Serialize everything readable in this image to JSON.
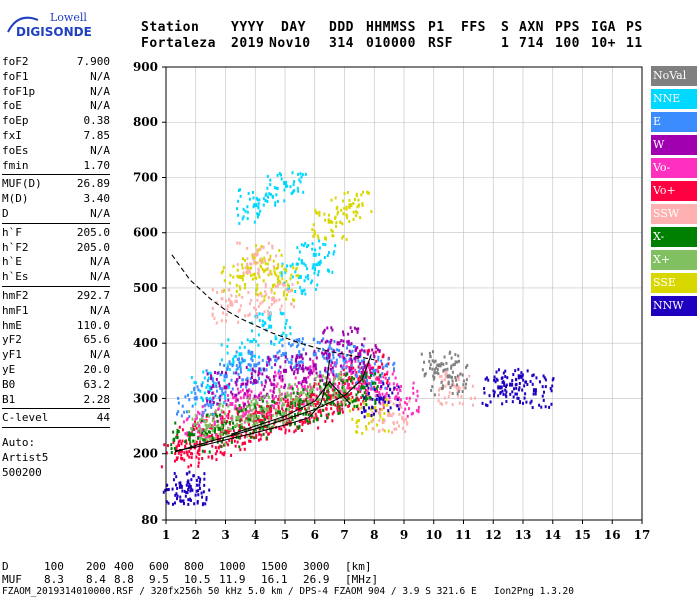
{
  "logo": {
    "line1": "Lowell",
    "line2": "DIGISONDE"
  },
  "header": {
    "row1": [
      "Station",
      "YYYY",
      "DAY",
      "DDD",
      "HHMMSS",
      "P1",
      "FFS",
      "S",
      "AXN",
      "PPS",
      "IGA",
      "PS"
    ],
    "row2": [
      "Fortaleza",
      "2019",
      "Nov10",
      "314",
      "010000",
      "RSF",
      "",
      "1",
      "714",
      "100",
      "10+",
      "11"
    ]
  },
  "params": [
    {
      "name": "foF2",
      "value": "7.900"
    },
    {
      "name": "foF1",
      "value": "N/A"
    },
    {
      "name": "foF1p",
      "value": "N/A"
    },
    {
      "name": "foE",
      "value": "N/A"
    },
    {
      "name": "foEp",
      "value": "0.38"
    },
    {
      "name": "fxI",
      "value": "7.85"
    },
    {
      "name": "foEs",
      "value": "N/A"
    },
    {
      "name": "fmin",
      "value": "1.70"
    },
    {
      "name": "MUF(D)",
      "value": "26.89"
    },
    {
      "name": "M(D)",
      "value": "3.40"
    },
    {
      "name": "D",
      "value": "N/A"
    },
    {
      "name": "h`F",
      "value": "205.0"
    },
    {
      "name": "h`F2",
      "value": "205.0"
    },
    {
      "name": "h`E",
      "value": "N/A"
    },
    {
      "name": "h`Es",
      "value": "N/A"
    },
    {
      "name": "hmF2",
      "value": "292.7"
    },
    {
      "name": "hmF1",
      "value": "N/A"
    },
    {
      "name": "hmE",
      "value": "110.0"
    },
    {
      "name": "yF2",
      "value": "65.6"
    },
    {
      "name": "yF1",
      "value": "N/A"
    },
    {
      "name": "yE",
      "value": "20.0"
    },
    {
      "name": "B0",
      "value": "63.2"
    },
    {
      "name": "B1",
      "value": "2.28"
    },
    {
      "name": "C-level",
      "value": "44"
    }
  ],
  "autoscaling": {
    "line1": "Auto:",
    "line2": "Artist5",
    "line3": "500200"
  },
  "legend": [
    {
      "label": "NoVal",
      "color": "#808080"
    },
    {
      "label": "NNE",
      "color": "#00d8ff"
    },
    {
      "label": "E",
      "color": "#3a8cff"
    },
    {
      "label": "W",
      "color": "#a000b0"
    },
    {
      "label": "Vo-",
      "color": "#ff30c0"
    },
    {
      "label": "Vo+",
      "color": "#ff0040"
    },
    {
      "label": "SSW",
      "color": "#ffb0b0"
    },
    {
      "label": "X-",
      "color": "#008000"
    },
    {
      "label": "X+",
      "color": "#80c060"
    },
    {
      "label": "SSE",
      "color": "#d8d800"
    },
    {
      "label": "NNW",
      "color": "#2000c0"
    }
  ],
  "footer": {
    "row_d": [
      "D",
      "100",
      "200",
      "400",
      "600",
      "800",
      "1000",
      "1500",
      "3000",
      "[km]"
    ],
    "row_muf": [
      "MUF",
      "8.3",
      "8.4",
      "8.8",
      "9.5",
      "10.5",
      "11.9",
      "16.1",
      "26.9",
      "[MHz]"
    ],
    "info": "FZAOM_2019314010000.RSF / 320fx256h 50 kHz 5.0 km / DPS-4 FZAOM 904 / 3.9 S 321.6 E   Ion2Png 1.3.20"
  },
  "chart_data": {
    "type": "scatter",
    "xlim": [
      1,
      17
    ],
    "ylim": [
      80,
      900
    ],
    "xticks": [
      1,
      2,
      3,
      4,
      5,
      6,
      7,
      8,
      9,
      10,
      11,
      12,
      13,
      14,
      15,
      16,
      17
    ],
    "yticks": [
      80,
      200,
      300,
      400,
      500,
      600,
      700,
      800,
      900
    ],
    "grid": true,
    "series": [
      {
        "name": "Vo+",
        "color": "#ff0040",
        "points": [
          [
            1.5,
            205
          ],
          [
            2.0,
            220
          ],
          [
            2.5,
            230
          ],
          [
            3.0,
            240
          ],
          [
            3.5,
            250
          ],
          [
            4.0,
            258
          ],
          [
            4.5,
            265
          ],
          [
            5.0,
            272
          ],
          [
            5.5,
            280
          ],
          [
            6.0,
            288
          ],
          [
            6.5,
            300
          ],
          [
            7.0,
            312
          ],
          [
            7.5,
            330
          ],
          [
            7.8,
            360
          ]
        ]
      },
      {
        "name": "Vo-",
        "color": "#ff30c0",
        "points": [
          [
            2.2,
            260
          ],
          [
            3.2,
            290
          ],
          [
            4.2,
            300
          ],
          [
            5.2,
            320
          ],
          [
            6.2,
            340
          ],
          [
            7.2,
            350
          ],
          [
            8.2,
            330
          ],
          [
            8.8,
            300
          ]
        ]
      },
      {
        "name": "NNE",
        "color": "#00d8ff",
        "points": [
          [
            2.5,
            320
          ],
          [
            3.5,
            380
          ],
          [
            4.5,
            430
          ],
          [
            5.5,
            520
          ],
          [
            6.0,
            560
          ],
          [
            4.0,
            650
          ],
          [
            5.0,
            690
          ]
        ]
      },
      {
        "name": "E",
        "color": "#3a8cff",
        "points": [
          [
            2.0,
            300
          ],
          [
            3.0,
            340
          ],
          [
            4.0,
            360
          ],
          [
            5.0,
            380
          ],
          [
            6.0,
            380
          ],
          [
            7.0,
            370
          ],
          [
            8.0,
            350
          ]
        ]
      },
      {
        "name": "W",
        "color": "#a000b0",
        "points": [
          [
            3.0,
            320
          ],
          [
            4.0,
            330
          ],
          [
            5.0,
            350
          ],
          [
            6.0,
            360
          ],
          [
            6.8,
            400
          ],
          [
            7.5,
            380
          ]
        ]
      },
      {
        "name": "SSE",
        "color": "#d8d800",
        "points": [
          [
            3.5,
            520
          ],
          [
            4.2,
            550
          ],
          [
            4.8,
            510
          ],
          [
            6.5,
            620
          ],
          [
            7.2,
            650
          ],
          [
            7.8,
            270
          ]
        ]
      },
      {
        "name": "SSW",
        "color": "#ffb0b0",
        "points": [
          [
            3.2,
            470
          ],
          [
            4.0,
            560
          ],
          [
            4.6,
            480
          ],
          [
            10.8,
            320
          ],
          [
            8.5,
            270
          ]
        ]
      },
      {
        "name": "X-",
        "color": "#008000",
        "points": [
          [
            1.8,
            235
          ],
          [
            2.8,
            245
          ],
          [
            3.8,
            262
          ],
          [
            4.8,
            275
          ],
          [
            5.8,
            290
          ],
          [
            6.8,
            305
          ],
          [
            7.6,
            320
          ]
        ]
      },
      {
        "name": "X+",
        "color": "#80c060",
        "points": [
          [
            2.4,
            250
          ],
          [
            3.4,
            265
          ],
          [
            4.4,
            280
          ],
          [
            5.4,
            300
          ],
          [
            6.4,
            320
          ]
        ]
      },
      {
        "name": "NNW",
        "color": "#2000c0",
        "points": [
          [
            1.5,
            140
          ],
          [
            1.8,
            140
          ],
          [
            12.2,
            320
          ],
          [
            12.6,
            325
          ],
          [
            13.4,
            315
          ],
          [
            8.2,
            300
          ]
        ]
      },
      {
        "name": "NoVal",
        "color": "#808080",
        "points": [
          [
            10.5,
            340
          ],
          [
            10.2,
            360
          ]
        ]
      }
    ],
    "traces": [
      {
        "style": "dashed",
        "points": [
          [
            1.2,
            560
          ],
          [
            1.8,
            515
          ],
          [
            2.5,
            480
          ],
          [
            3.0,
            460
          ],
          [
            3.5,
            445
          ],
          [
            4.5,
            420
          ],
          [
            5.5,
            400
          ],
          [
            6.5,
            385
          ],
          [
            7.5,
            375
          ],
          [
            8.0,
            370
          ]
        ]
      },
      {
        "style": "solid",
        "points": [
          [
            1.3,
            203
          ],
          [
            2.0,
            215
          ],
          [
            3.0,
            230
          ],
          [
            4.0,
            245
          ],
          [
            5.0,
            262
          ],
          [
            6.0,
            280
          ],
          [
            7.0,
            305
          ],
          [
            7.6,
            335
          ],
          [
            7.9,
            380
          ]
        ]
      },
      {
        "style": "solid",
        "points": [
          [
            1.3,
            205
          ],
          [
            2.0,
            212
          ],
          [
            3.0,
            225
          ],
          [
            4.0,
            238
          ],
          [
            5.0,
            252
          ],
          [
            5.8,
            265
          ],
          [
            6.2,
            290
          ],
          [
            6.4,
            330
          ],
          [
            6.5,
            370
          ]
        ]
      },
      {
        "style": "solid",
        "points": [
          [
            3.2,
            235
          ],
          [
            4.0,
            250
          ],
          [
            5.0,
            268
          ],
          [
            6.0,
            295
          ],
          [
            6.5,
            330
          ],
          [
            7.2,
            290
          ]
        ]
      }
    ]
  }
}
